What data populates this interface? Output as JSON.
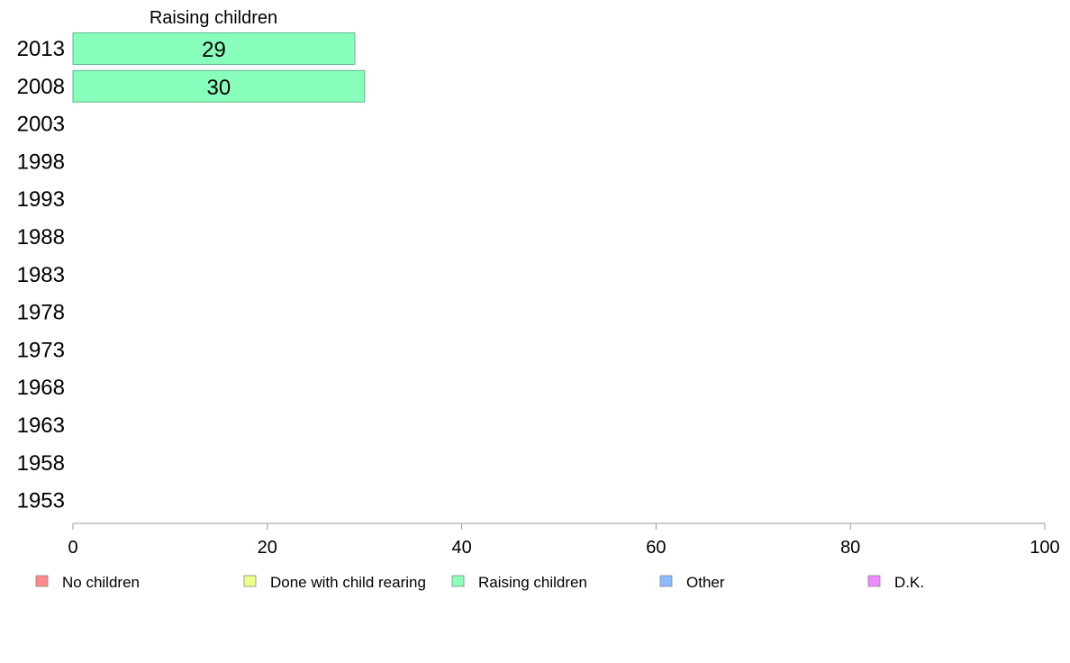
{
  "chart_data": {
    "type": "bar",
    "orientation": "horizontal",
    "title": "Raising children",
    "categories": [
      "2013",
      "2008",
      "2003",
      "1998",
      "1993",
      "1988",
      "1983",
      "1978",
      "1973",
      "1968",
      "1963",
      "1958",
      "1953"
    ],
    "series": [
      {
        "name": "Raising children",
        "color": "#88ffbb",
        "values": [
          29,
          30,
          null,
          null,
          null,
          null,
          null,
          null,
          null,
          null,
          null,
          null,
          null
        ]
      }
    ],
    "xlim": [
      0,
      100
    ],
    "xticks": [
      0,
      20,
      40,
      60,
      80,
      100
    ],
    "grid": false,
    "legend": {
      "position": "bottom",
      "items": [
        {
          "label": "No children",
          "color": "#ff8888"
        },
        {
          "label": "Done with child rearing",
          "color": "#eeff88"
        },
        {
          "label": "Raising children",
          "color": "#88ffbb"
        },
        {
          "label": "Other",
          "color": "#88bbff"
        },
        {
          "label": "D.K.",
          "color": "#ee88ff"
        }
      ]
    }
  }
}
